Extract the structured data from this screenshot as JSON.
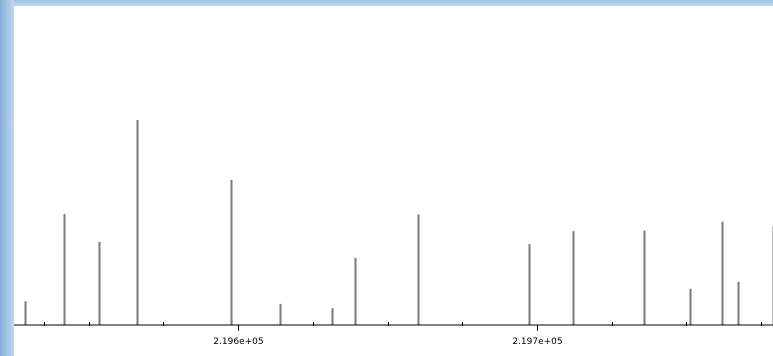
{
  "chart_data": {
    "type": "bar",
    "title": "",
    "xlabel": "",
    "ylabel": "",
    "xlim": [
      219525,
      219779
    ],
    "ylim": [
      0,
      1.0
    ],
    "grid": false,
    "x_tick_labels": [
      {
        "value": 219600,
        "label": "2.196e+05"
      },
      {
        "value": 219700,
        "label": "2.197e+05"
      }
    ],
    "x_minor_ticks": [
      219535,
      219550,
      219575,
      219625,
      219650,
      219675,
      219725,
      219750,
      219775
    ],
    "series": [
      {
        "values": [
          {
            "x": 219528.6,
            "y": 0.116
          },
          {
            "x": 219541.6,
            "y": 0.541
          },
          {
            "x": 219553.6,
            "y": 0.405
          },
          {
            "x": 219566.0,
            "y": 1.0
          },
          {
            "x": 219597.6,
            "y": 0.708
          },
          {
            "x": 219614.0,
            "y": 0.103
          },
          {
            "x": 219631.4,
            "y": 0.082
          },
          {
            "x": 219639.1,
            "y": 0.327
          },
          {
            "x": 219660.3,
            "y": 0.539
          },
          {
            "x": 219697.3,
            "y": 0.395
          },
          {
            "x": 219712.2,
            "y": 0.458
          },
          {
            "x": 219735.7,
            "y": 0.461
          },
          {
            "x": 219751.1,
            "y": 0.177
          },
          {
            "x": 219761.9,
            "y": 0.504
          },
          {
            "x": 219767.4,
            "y": 0.21
          },
          {
            "x": 219778.9,
            "y": 0.482
          }
        ]
      }
    ]
  }
}
